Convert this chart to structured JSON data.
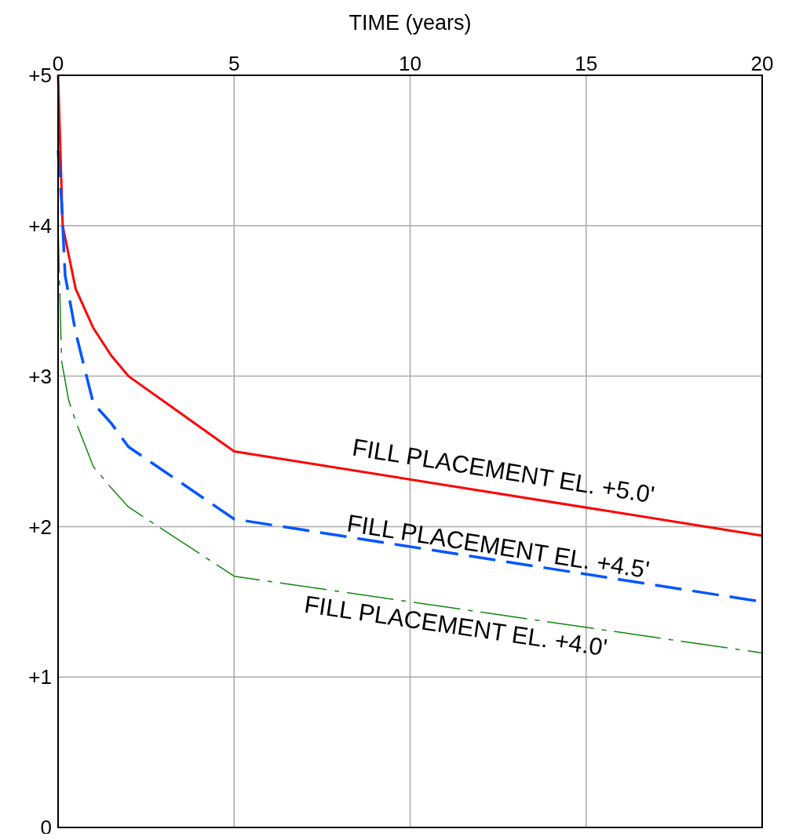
{
  "chart_data": {
    "type": "line",
    "xlabel": "TIME (years)",
    "xlim": [
      0,
      20
    ],
    "xticks": [
      0,
      5,
      10,
      15,
      20
    ],
    "ylim": [
      0,
      5
    ],
    "yticks": [
      {
        "value": 0,
        "label": "0"
      },
      {
        "value": 1,
        "label": "+1"
      },
      {
        "value": 2,
        "label": "+2"
      },
      {
        "value": 3,
        "label": "+3"
      },
      {
        "value": 4,
        "label": "+4"
      },
      {
        "value": 5,
        "label": "+5"
      }
    ],
    "grid": true,
    "marker": "none",
    "series": [
      {
        "name": "FILL PLACEMENT EL. +5.0'",
        "color": "#ff0000",
        "line_style": "solid",
        "x": [
          0,
          0.13,
          0.35,
          0.5,
          1,
          1.5,
          2,
          5,
          20
        ],
        "values": [
          5,
          4.0,
          3.75,
          3.58,
          3.32,
          3.14,
          3.0,
          2.5,
          1.94
        ]
      },
      {
        "name": "FILL PLACEMENT EL. +4.5'",
        "color": "#0055ff",
        "line_style": "dashed",
        "x": [
          0,
          0.1,
          0.2,
          0.5,
          1,
          1.5,
          2,
          5,
          20
        ],
        "values": [
          4.5,
          4.15,
          3.67,
          3.29,
          2.82,
          2.69,
          2.53,
          2.05,
          1.5
        ]
      },
      {
        "name": "FILL PLACEMENT EL. +4.0'",
        "color": "#118811",
        "line_style": "dashed",
        "x": [
          0,
          0.1,
          0.3,
          0.5,
          1,
          1.5,
          2,
          5,
          20
        ],
        "values": [
          4.0,
          3.1,
          2.84,
          2.7,
          2.4,
          2.26,
          2.13,
          1.67,
          1.16
        ]
      }
    ]
  }
}
